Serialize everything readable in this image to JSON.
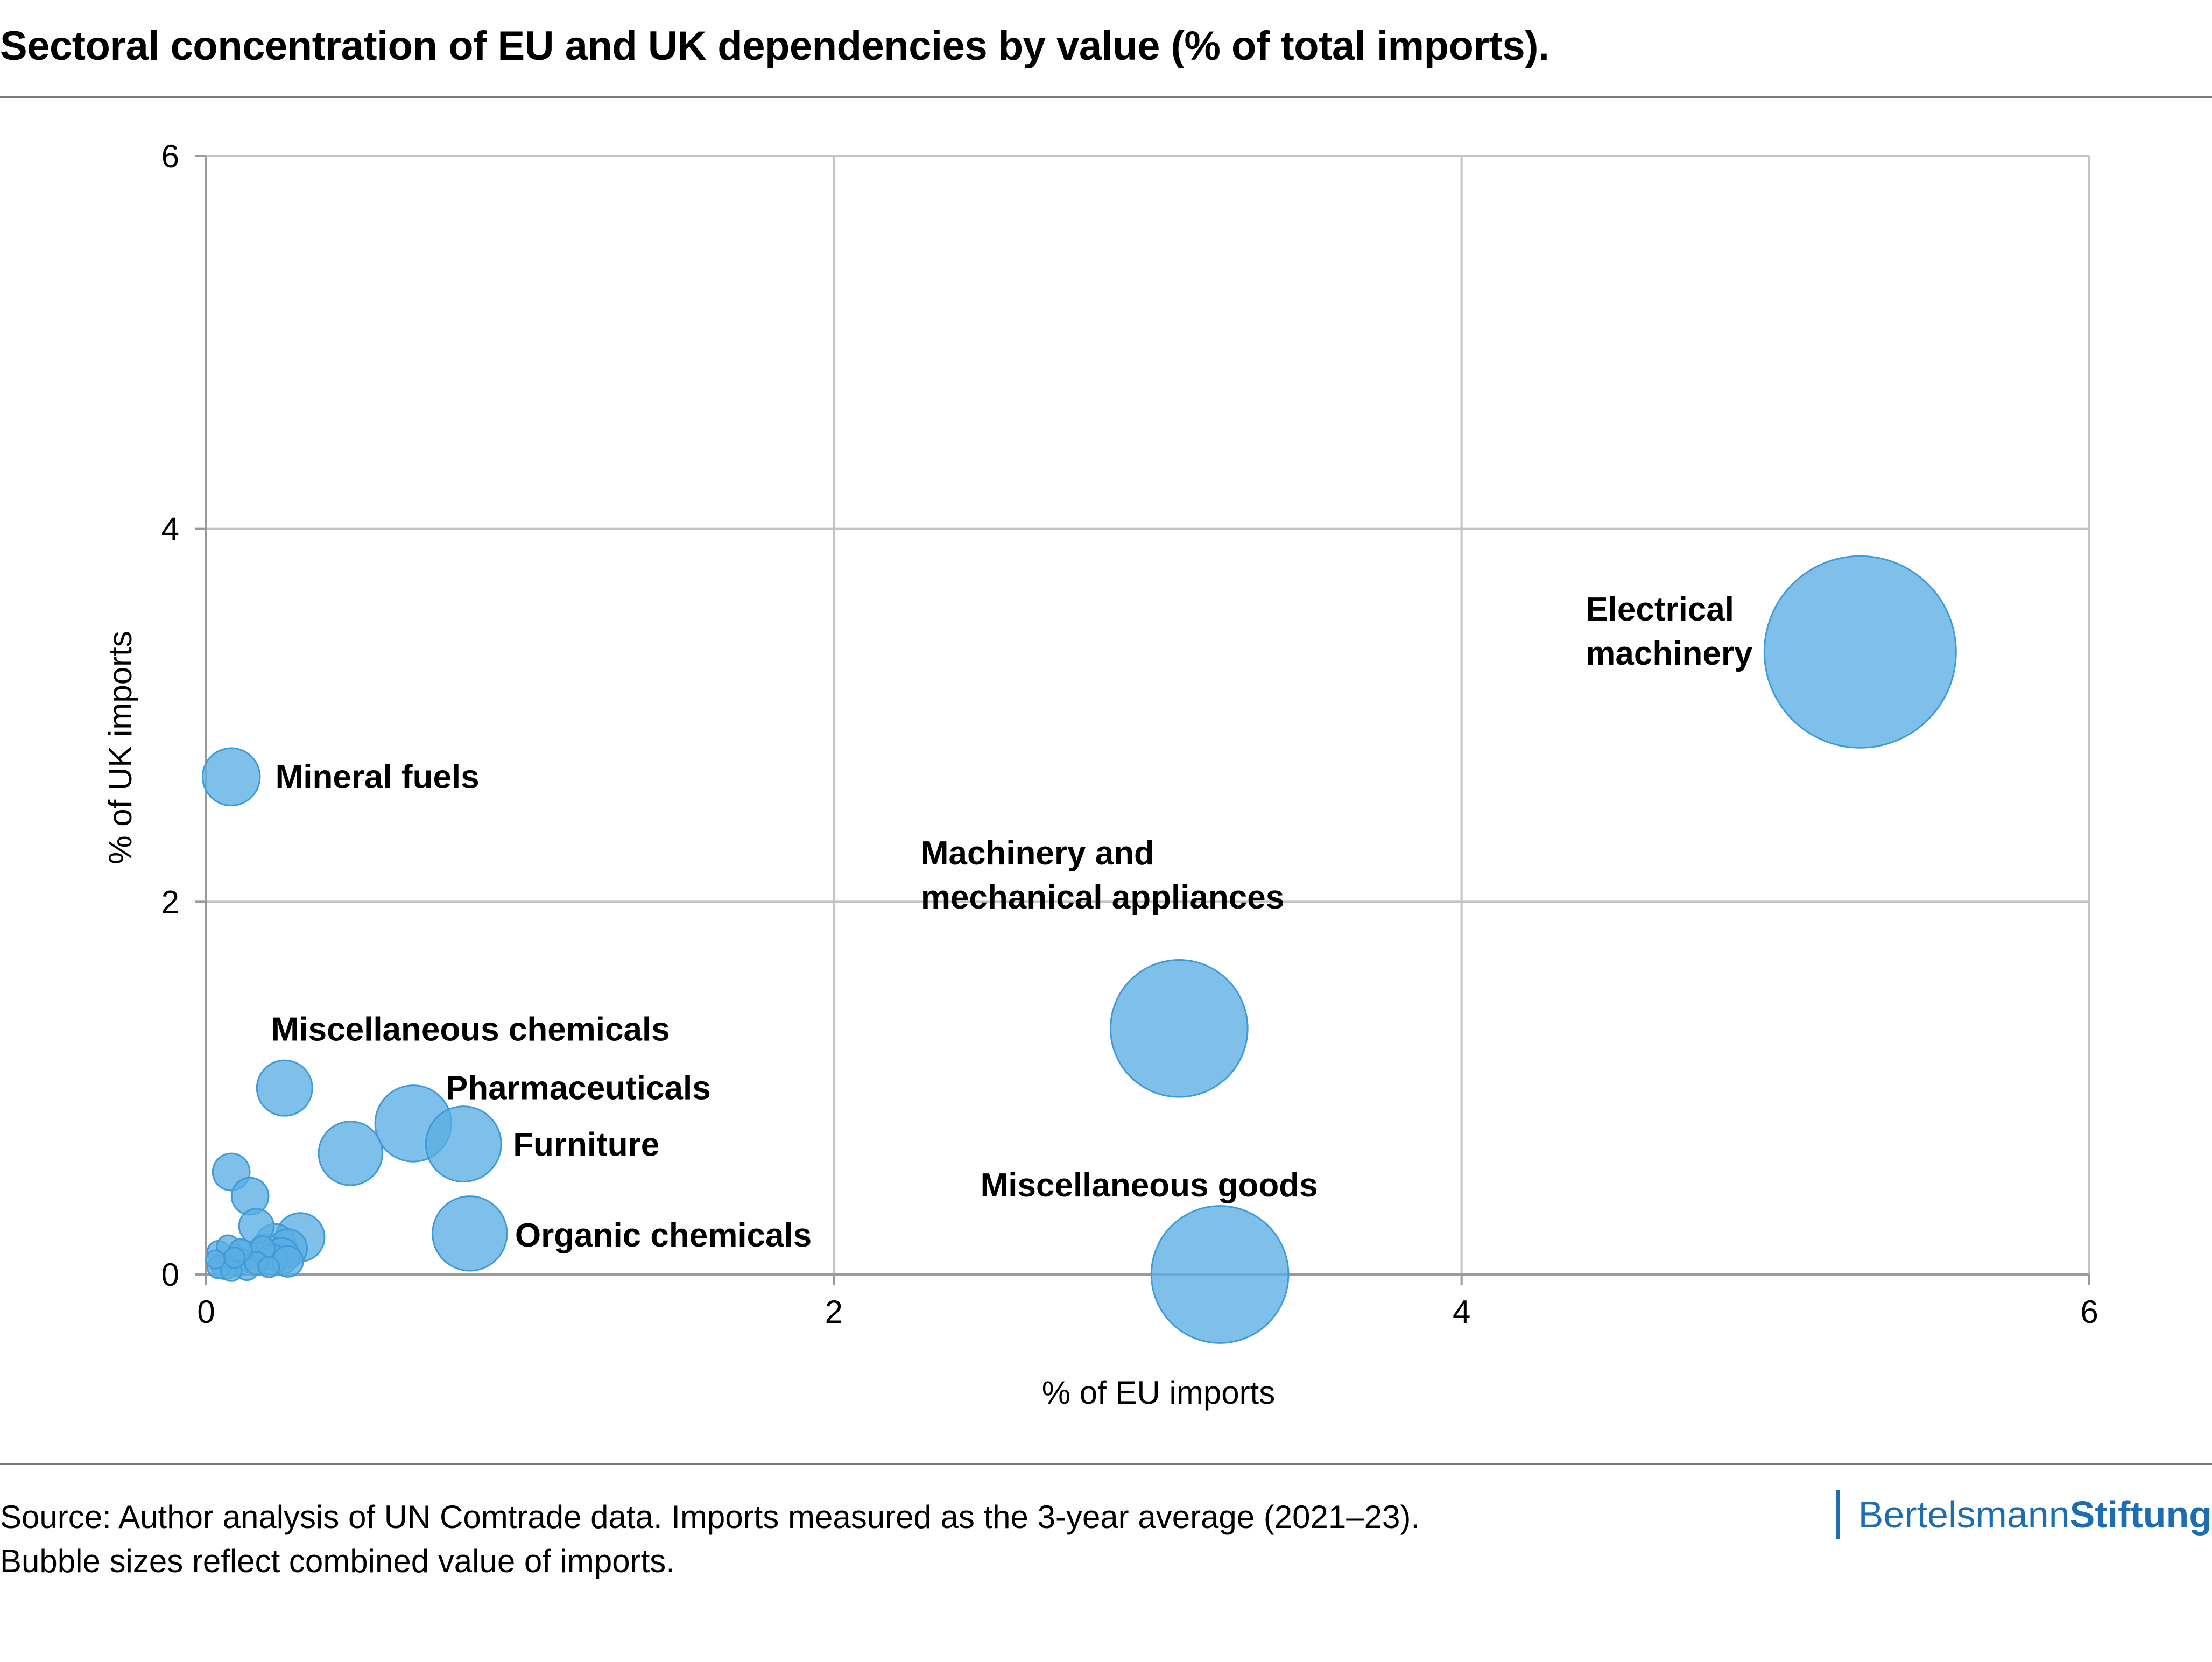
{
  "header": {
    "title": "Sectoral concentration of EU and UK dependencies by value (% of total imports)."
  },
  "footer": {
    "source_line1": "Source: Author analysis of UN Comtrade data. Imports measured as the 3-year average (2021–23).",
    "source_line2": "Bubble sizes reflect combined value of imports.",
    "brand_part1": "Bertelsmann",
    "brand_part2": "Stiftung",
    "brand_color": "#1d6db3"
  },
  "chart_data": {
    "type": "scatter",
    "subtype": "bubble",
    "xlabel": "% of EU imports",
    "ylabel": "% of UK imports",
    "xlim": [
      0,
      6
    ],
    "ylim": [
      0,
      6
    ],
    "xticks": [
      0,
      2,
      4,
      6
    ],
    "yticks": [
      0,
      2,
      4,
      6
    ],
    "grid": true,
    "bubble_color": "#5aaee3",
    "bubble_edge_color": "#3f9bd6",
    "points": [
      {
        "label": "Electrical machinery",
        "label_lines": [
          "Electrical",
          "machinery"
        ],
        "x": 5.27,
        "y": 3.34,
        "size": 8.6
      },
      {
        "label": "Machinery and mechanical appliances",
        "label_lines": [
          "Machinery and",
          "mechanical appliances"
        ],
        "x": 3.1,
        "y": 1.32,
        "size": 4.4
      },
      {
        "label": "Miscellaneous goods",
        "label_lines": [
          "Miscellaneous goods"
        ],
        "x": 3.23,
        "y": 0.0,
        "size": 4.4
      },
      {
        "label": "Mineral fuels",
        "label_lines": [
          "Mineral fuels"
        ],
        "x": 0.08,
        "y": 2.67,
        "size": 0.77
      },
      {
        "label": "Miscellaneous chemicals",
        "label_lines": [
          "Miscellaneous chemicals"
        ],
        "x": 0.25,
        "y": 1.0,
        "size": 0.72
      },
      {
        "label": "Pharmaceuticals",
        "label_lines": [
          "Pharmaceuticals"
        ],
        "x": 0.66,
        "y": 0.81,
        "size": 1.36
      },
      {
        "label": "Furniture",
        "label_lines": [
          "Furniture"
        ],
        "x": 0.82,
        "y": 0.7,
        "size": 1.33
      },
      {
        "label": "Organic chemicals",
        "label_lines": [
          "Organic chemicals"
        ],
        "x": 0.84,
        "y": 0.22,
        "size": 1.3
      },
      {
        "label": "",
        "x": 0.46,
        "y": 0.65,
        "size": 0.95
      },
      {
        "label": "",
        "x": 0.08,
        "y": 0.55,
        "size": 0.32
      },
      {
        "label": "",
        "x": 0.14,
        "y": 0.42,
        "size": 0.32
      },
      {
        "label": "",
        "x": 0.16,
        "y": 0.26,
        "size": 0.28
      },
      {
        "label": "",
        "x": 0.3,
        "y": 0.2,
        "size": 0.55
      },
      {
        "label": "",
        "x": 0.22,
        "y": 0.16,
        "size": 0.4
      },
      {
        "label": "",
        "x": 0.26,
        "y": 0.14,
        "size": 0.35
      },
      {
        "label": "",
        "x": 0.19,
        "y": 0.12,
        "size": 0.3
      },
      {
        "label": "",
        "x": 0.24,
        "y": 0.1,
        "size": 0.3
      },
      {
        "label": "",
        "x": 0.21,
        "y": 0.08,
        "size": 0.22
      },
      {
        "label": "",
        "x": 0.26,
        "y": 0.07,
        "size": 0.22
      },
      {
        "label": "",
        "x": 0.12,
        "y": 0.1,
        "size": 0.22
      },
      {
        "label": "",
        "x": 0.1,
        "y": 0.07,
        "size": 0.2
      },
      {
        "label": "",
        "x": 0.06,
        "y": 0.05,
        "size": 0.18
      },
      {
        "label": "",
        "x": 0.04,
        "y": 0.12,
        "size": 0.12
      },
      {
        "label": "",
        "x": 0.04,
        "y": 0.04,
        "size": 0.12
      },
      {
        "label": "",
        "x": 0.07,
        "y": 0.15,
        "size": 0.12
      },
      {
        "label": "",
        "x": 0.08,
        "y": 0.02,
        "size": 0.1
      },
      {
        "label": "",
        "x": 0.13,
        "y": 0.03,
        "size": 0.12
      },
      {
        "label": "",
        "x": 0.16,
        "y": 0.06,
        "size": 0.12
      },
      {
        "label": "",
        "x": 0.18,
        "y": 0.14,
        "size": 0.14
      },
      {
        "label": "",
        "x": 0.2,
        "y": 0.04,
        "size": 0.1
      },
      {
        "label": "",
        "x": 0.11,
        "y": 0.13,
        "size": 0.12
      },
      {
        "label": "",
        "x": 0.03,
        "y": 0.08,
        "size": 0.08
      },
      {
        "label": "",
        "x": 0.09,
        "y": 0.09,
        "size": 0.1
      }
    ]
  }
}
